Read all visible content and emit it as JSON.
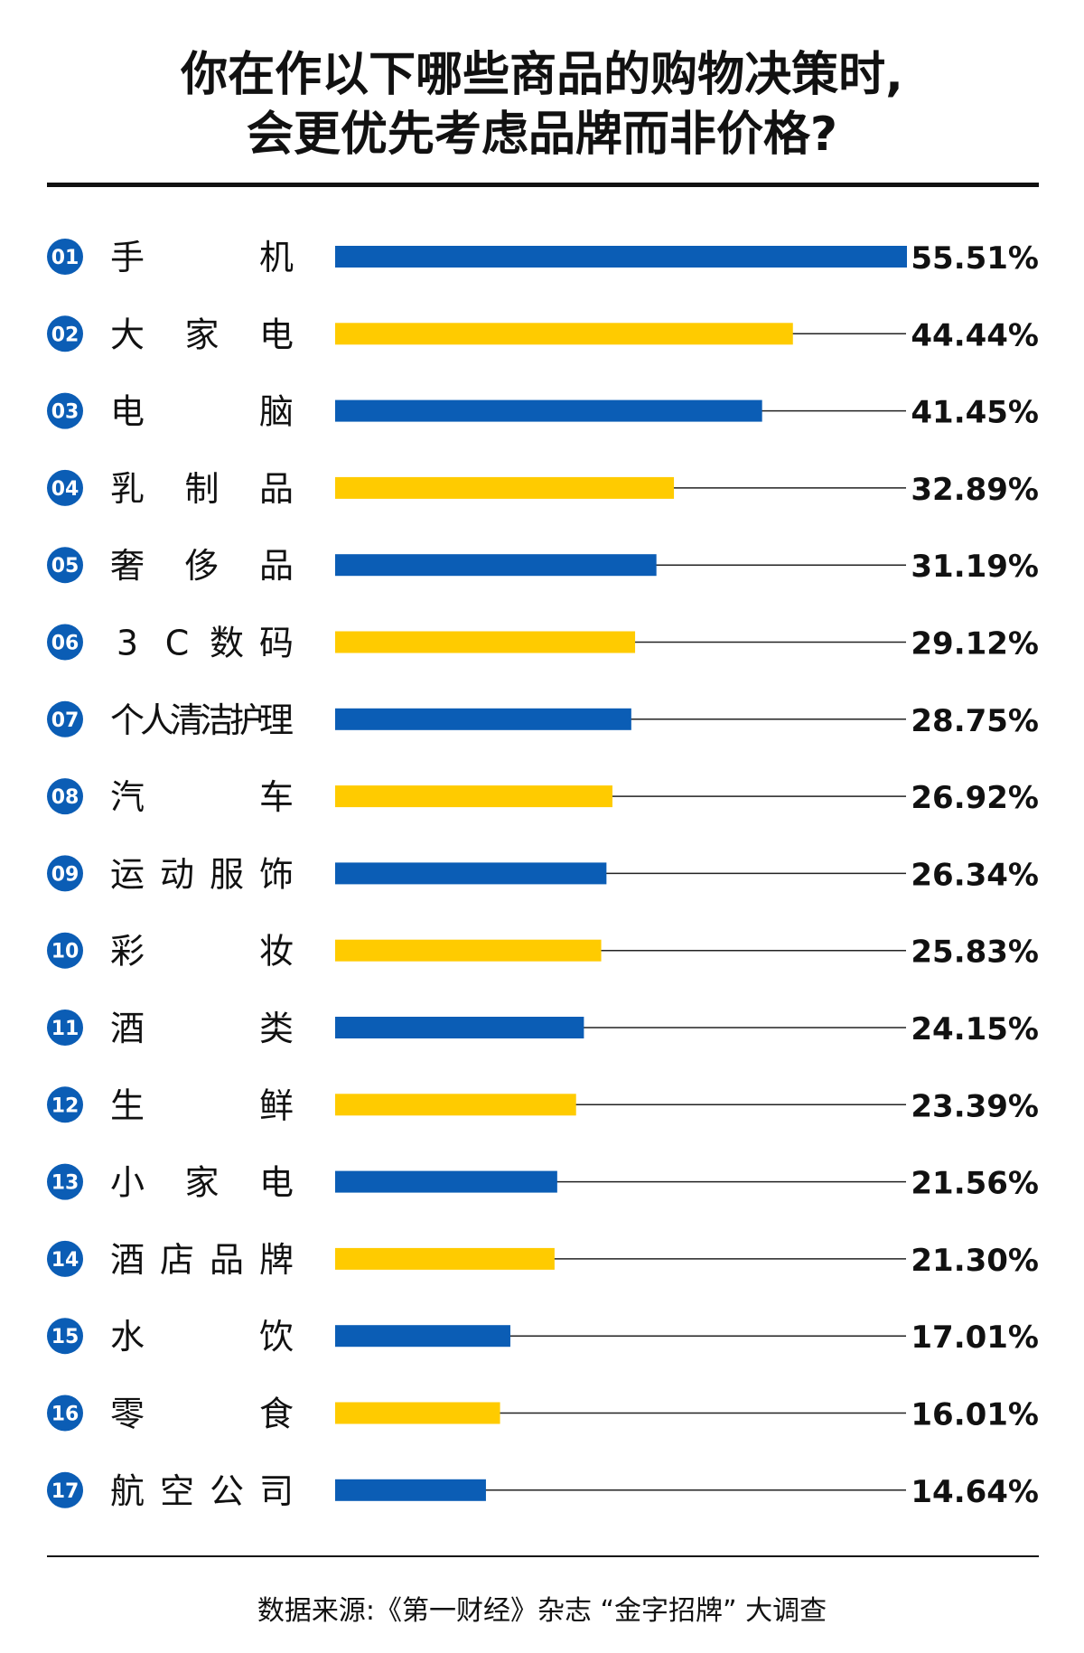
{
  "title": {
    "line1": "你在作以下哪些商品的购物决策时,",
    "line2": "会更优先考虑品牌而非价格?"
  },
  "source": "数据来源:《第一财经》杂志 “金字招牌” 大调查",
  "colors": {
    "blue": "#0B5DB5",
    "yellow": "#FFCB00",
    "text": "#111111",
    "line": "#222222"
  },
  "chart_data": {
    "type": "bar",
    "orientation": "horizontal",
    "value_unit": "%",
    "max_value": 55.51,
    "items": [
      {
        "rank": "01",
        "chars": [
          "手",
          "机"
        ],
        "value": 55.51,
        "label": "55.51%",
        "color": "blue"
      },
      {
        "rank": "02",
        "chars": [
          "大",
          "家",
          "电"
        ],
        "value": 44.44,
        "label": "44.44%",
        "color": "yellow"
      },
      {
        "rank": "03",
        "chars": [
          "电",
          "脑"
        ],
        "value": 41.45,
        "label": "41.45%",
        "color": "blue"
      },
      {
        "rank": "04",
        "chars": [
          "乳",
          "制",
          "品"
        ],
        "value": 32.89,
        "label": "32.89%",
        "color": "yellow"
      },
      {
        "rank": "05",
        "chars": [
          "奢",
          "侈",
          "品"
        ],
        "value": 31.19,
        "label": "31.19%",
        "color": "blue"
      },
      {
        "rank": "06",
        "chars": [
          "3",
          "C",
          "数",
          "码"
        ],
        "value": 29.12,
        "label": "29.12%",
        "color": "yellow"
      },
      {
        "rank": "07",
        "chars": [
          "个",
          "人",
          "清",
          "洁",
          "护",
          "理"
        ],
        "value": 28.75,
        "label": "28.75%",
        "color": "blue"
      },
      {
        "rank": "08",
        "chars": [
          "汽",
          "车"
        ],
        "value": 26.92,
        "label": "26.92%",
        "color": "yellow"
      },
      {
        "rank": "09",
        "chars": [
          "运",
          "动",
          "服",
          "饰"
        ],
        "value": 26.34,
        "label": "26.34%",
        "color": "blue"
      },
      {
        "rank": "10",
        "chars": [
          "彩",
          "妆"
        ],
        "value": 25.83,
        "label": "25.83%",
        "color": "yellow"
      },
      {
        "rank": "11",
        "chars": [
          "酒",
          "类"
        ],
        "value": 24.15,
        "label": "24.15%",
        "color": "blue"
      },
      {
        "rank": "12",
        "chars": [
          "生",
          "鲜"
        ],
        "value": 23.39,
        "label": "23.39%",
        "color": "yellow"
      },
      {
        "rank": "13",
        "chars": [
          "小",
          "家",
          "电"
        ],
        "value": 21.56,
        "label": "21.56%",
        "color": "blue"
      },
      {
        "rank": "14",
        "chars": [
          "酒",
          "店",
          "品",
          "牌"
        ],
        "value": 21.3,
        "label": "21.30%",
        "color": "yellow"
      },
      {
        "rank": "15",
        "chars": [
          "水",
          "饮"
        ],
        "value": 17.01,
        "label": "17.01%",
        "color": "blue"
      },
      {
        "rank": "16",
        "chars": [
          "零",
          "食"
        ],
        "value": 16.01,
        "label": "16.01%",
        "color": "yellow"
      },
      {
        "rank": "17",
        "chars": [
          "航",
          "空",
          "公",
          "司"
        ],
        "value": 14.64,
        "label": "14.64%",
        "color": "blue"
      }
    ]
  }
}
